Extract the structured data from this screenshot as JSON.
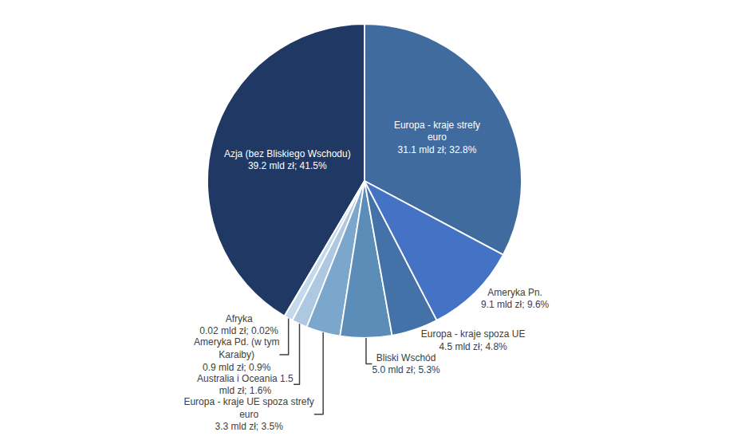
{
  "chart_data": {
    "type": "pie",
    "categories": [
      "Europa - kraje strefy\neuro\n31.1 mld zł; 32.8%",
      "Azja (bez Bliskiego Wschodu)\n39.2 mld zł; 41.5%",
      "Afryka\n0.02 mld zł; 0.02%",
      "Ameryka Pd. (w tym\nKaraiby)\n0.9 mld zł; 0.9%",
      "Australia i Oceania 1.5\nmld zł; 1.6%",
      "Europa - kraje UE spoza strefy\neuro\n3.3 mld zł; 3.5%",
      "Bliski Wschód\n5.0 mld zł; 5.3%",
      "Europa - kraje spoza UE\n4.5 mld zł; 4.8%",
      "Ameryka Pn.\n9.1 mld zł; 9.6%"
    ],
    "values": [
      32.8,
      41.5,
      0.02,
      0.9,
      1.6,
      3.5,
      5.3,
      4.8,
      9.6
    ],
    "colors": [
      "#3F6B9E",
      "#1F3864",
      "#D6E4F0",
      "#C5D9EC",
      "#ADC8E0",
      "#7BA7CC",
      "#5B8DB8",
      "#4472A8",
      "#4472C4"
    ],
    "data_labels": true
  }
}
